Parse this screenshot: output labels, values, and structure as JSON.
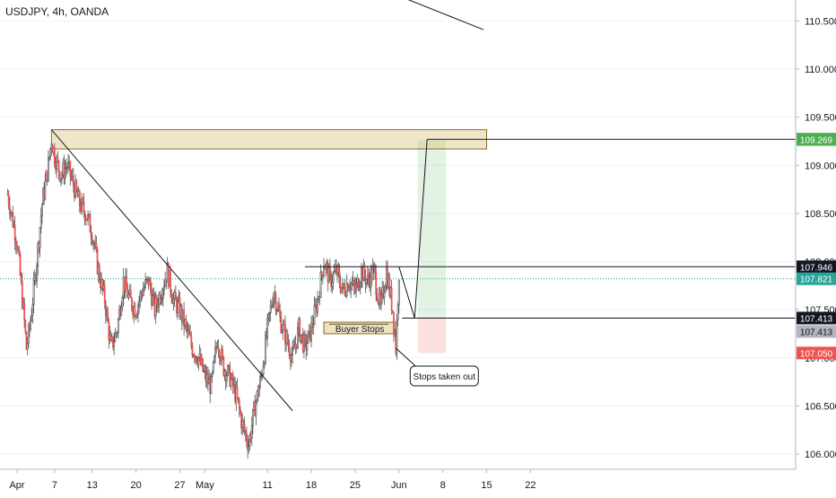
{
  "chart_data": {
    "type": "candlestick",
    "title": "USDJPY, 4h, OANDA",
    "ylim": [
      105.9,
      110.7
    ],
    "y_ticks": [
      106.0,
      106.5,
      107.0,
      107.5,
      108.0,
      108.5,
      109.0,
      109.5,
      110.0,
      110.5
    ],
    "y_tick_labels": [
      "106.000",
      "106.500",
      "107.000",
      "107.500",
      "108.000",
      "108.500",
      "109.000",
      "109.500",
      "110.000",
      "110.500"
    ],
    "x_ticks": [
      {
        "day": 0,
        "label": "Apr"
      },
      {
        "day": 6,
        "label": "7"
      },
      {
        "day": 12,
        "label": "13"
      },
      {
        "day": 19,
        "label": "20"
      },
      {
        "day": 26,
        "label": "27"
      },
      {
        "day": 30,
        "label": "May"
      },
      {
        "day": 40,
        "label": "11"
      },
      {
        "day": 47,
        "label": "18"
      },
      {
        "day": 54,
        "label": "25"
      },
      {
        "day": 61,
        "label": "Jun"
      },
      {
        "day": 68,
        "label": "8"
      },
      {
        "day": 75,
        "label": "15"
      },
      {
        "day": 82,
        "label": "22"
      }
    ],
    "price_path": [
      [
        -1.5,
        108.7
      ],
      [
        0,
        108.2
      ],
      [
        1,
        107.5
      ],
      [
        1.5,
        107.1
      ],
      [
        2,
        107.3
      ],
      [
        3,
        107.9
      ],
      [
        4,
        108.6
      ],
      [
        5,
        109.0
      ],
      [
        5.5,
        109.27
      ],
      [
        6,
        109.1
      ],
      [
        7,
        108.9
      ],
      [
        8,
        109.0
      ],
      [
        9,
        108.8
      ],
      [
        10,
        108.6
      ],
      [
        11,
        108.5
      ],
      [
        12,
        108.3
      ],
      [
        13,
        107.9
      ],
      [
        14,
        107.6
      ],
      [
        15,
        107.1
      ],
      [
        16,
        107.3
      ],
      [
        17,
        107.8
      ],
      [
        18,
        107.6
      ],
      [
        19,
        107.5
      ],
      [
        20,
        107.7
      ],
      [
        21,
        107.8
      ],
      [
        22,
        107.5
      ],
      [
        23,
        107.7
      ],
      [
        24,
        107.9
      ],
      [
        25,
        107.6
      ],
      [
        26,
        107.5
      ],
      [
        27,
        107.3
      ],
      [
        28,
        107.1
      ],
      [
        29,
        107.0
      ],
      [
        30,
        106.8
      ],
      [
        31,
        106.7
      ],
      [
        32,
        107.2
      ],
      [
        33,
        106.9
      ],
      [
        34,
        106.8
      ],
      [
        35,
        106.6
      ],
      [
        36,
        106.3
      ],
      [
        37,
        106.1
      ],
      [
        38,
        106.5
      ],
      [
        39,
        106.8
      ],
      [
        40,
        107.3
      ],
      [
        41,
        107.7
      ],
      [
        42,
        107.4
      ],
      [
        43,
        107.2
      ],
      [
        44,
        107.0
      ],
      [
        45,
        107.3
      ],
      [
        46,
        107.1
      ],
      [
        47,
        107.3
      ],
      [
        48,
        107.6
      ],
      [
        49,
        108.0
      ],
      [
        50,
        107.8
      ],
      [
        51,
        107.9
      ],
      [
        52,
        107.7
      ],
      [
        53,
        107.8
      ],
      [
        54,
        107.7
      ],
      [
        55,
        107.9
      ],
      [
        56,
        107.8
      ],
      [
        57,
        107.9
      ],
      [
        58,
        107.5
      ],
      [
        59,
        107.9
      ],
      [
        60,
        107.5
      ],
      [
        60.5,
        107.1
      ],
      [
        61,
        107.9
      ]
    ],
    "projection": [
      [
        61,
        107.946
      ],
      [
        63.5,
        107.413
      ],
      [
        65.5,
        109.27
      ]
    ],
    "zone_top": {
      "y_min": 109.17,
      "y_max": 109.37,
      "x_start": 5.5,
      "x_end": 75.0
    },
    "buyer_stops_label": "Buyer Stops",
    "buyer_stops_box": {
      "y_min": 107.25,
      "y_max": 107.37,
      "x_start": 49.0,
      "x_end": 60.5
    },
    "buyer_stops_line_y": 107.35,
    "trendline_upper": [
      [
        52.5,
        110.98
      ],
      [
        74.5,
        110.41
      ]
    ],
    "trendline_lower": [
      [
        5.5,
        109.37
      ],
      [
        44.0,
        106.45
      ]
    ],
    "horizontal_lines": [
      {
        "y": 109.27,
        "x_start": 65.5,
        "label": "109.270",
        "color": "#131722"
      },
      {
        "y": 107.946,
        "x_start": 46.0,
        "label": "107.946",
        "color": "#131722"
      },
      {
        "y": 107.413,
        "x_start": 61.5,
        "label": "107.413",
        "color": "#131722"
      }
    ],
    "dotted_line_y": 107.821,
    "long_position": {
      "x_start": 64.0,
      "x_end": 68.5,
      "entry": 107.413,
      "target": 109.269,
      "stop": 107.05
    },
    "price_labels": [
      {
        "value": 109.269,
        "label": "109.269",
        "color": "#4caf50"
      },
      {
        "value": 107.821,
        "label": "107.821",
        "color": "#26a69a"
      },
      {
        "value": 107.413,
        "label": "107.413",
        "color": "#b2b5be"
      },
      {
        "value": 107.05,
        "label": "107.050",
        "color": "#ef5350"
      }
    ],
    "annotation_text": "Stops taken out",
    "annotation_target": [
      60.5,
      107.1
    ]
  }
}
